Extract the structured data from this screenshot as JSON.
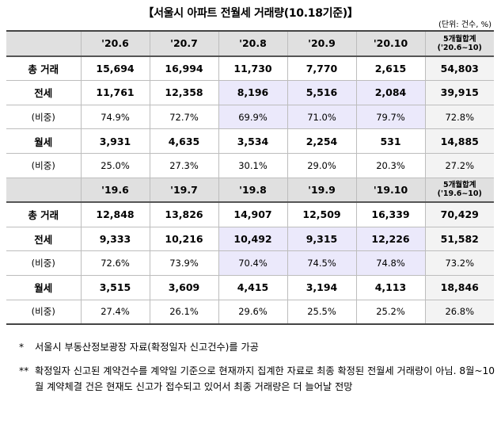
{
  "title": "【서울시 아파트 전월세 거래량(10.18기준)】",
  "unit": "(단위: 건수, %)",
  "block2020": {
    "headers": [
      "",
      "'20.6",
      "'20.7",
      "'20.8",
      "'20.9",
      "'20.10",
      "5개월합계('20.6~10)"
    ],
    "rows": [
      {
        "label": "총 거래",
        "values": [
          "15,694",
          "16,994",
          "11,730",
          "7,770",
          "2,615",
          "54,803"
        ]
      },
      {
        "label": "전세",
        "values": [
          "11,761",
          "12,358",
          "8,196",
          "5,516",
          "2,084",
          "39,915"
        ]
      },
      {
        "label": "(비중)",
        "values": [
          "74.9%",
          "72.7%",
          "69.9%",
          "71.0%",
          "79.7%",
          "72.8%"
        ]
      },
      {
        "label": "월세",
        "values": [
          "3,931",
          "4,635",
          "3,534",
          "2,254",
          "531",
          "14,885"
        ]
      },
      {
        "label": "(비중)",
        "values": [
          "25.0%",
          "27.3%",
          "30.1%",
          "29.0%",
          "20.3%",
          "27.2%"
        ]
      }
    ]
  },
  "block2019": {
    "headers": [
      "",
      "'19.6",
      "'19.7",
      "'19.8",
      "'19.9",
      "'19.10",
      "5개월합계('19.6~10)"
    ],
    "rows": [
      {
        "label": "총 거래",
        "values": [
          "12,848",
          "13,826",
          "14,907",
          "12,509",
          "16,339",
          "70,429"
        ]
      },
      {
        "label": "전세",
        "values": [
          "9,333",
          "10,216",
          "10,492",
          "9,315",
          "12,226",
          "51,582"
        ]
      },
      {
        "label": "(비중)",
        "values": [
          "72.6%",
          "73.9%",
          "70.4%",
          "74.5%",
          "74.8%",
          "73.2%"
        ]
      },
      {
        "label": "월세",
        "values": [
          "3,515",
          "3,609",
          "4,415",
          "3,194",
          "4,113",
          "18,846"
        ]
      },
      {
        "label": "(비중)",
        "values": [
          "27.4%",
          "26.1%",
          "29.6%",
          "25.5%",
          "25.2%",
          "26.8%"
        ]
      }
    ]
  },
  "notes": [
    {
      "mark": "*",
      "text": "서울시 부동산정보광장 자료(확정일자 신고건수)를 가공"
    },
    {
      "mark": "**",
      "text": "확정일자 신고된 계약건수를 계약일 기준으로 현재까지 집계한 자료로 최종 확정된 전월세 거래량이 아님. 8월~10월 계약체결 건은 현재도 신고가 접수되고 있어서 최종 거래량은 더 늘어날 전망"
    }
  ],
  "colors": {
    "header_bg": "#e0e0e0",
    "highlight_bg": "#ebe9fb",
    "total_bg": "#f3f3f3"
  }
}
